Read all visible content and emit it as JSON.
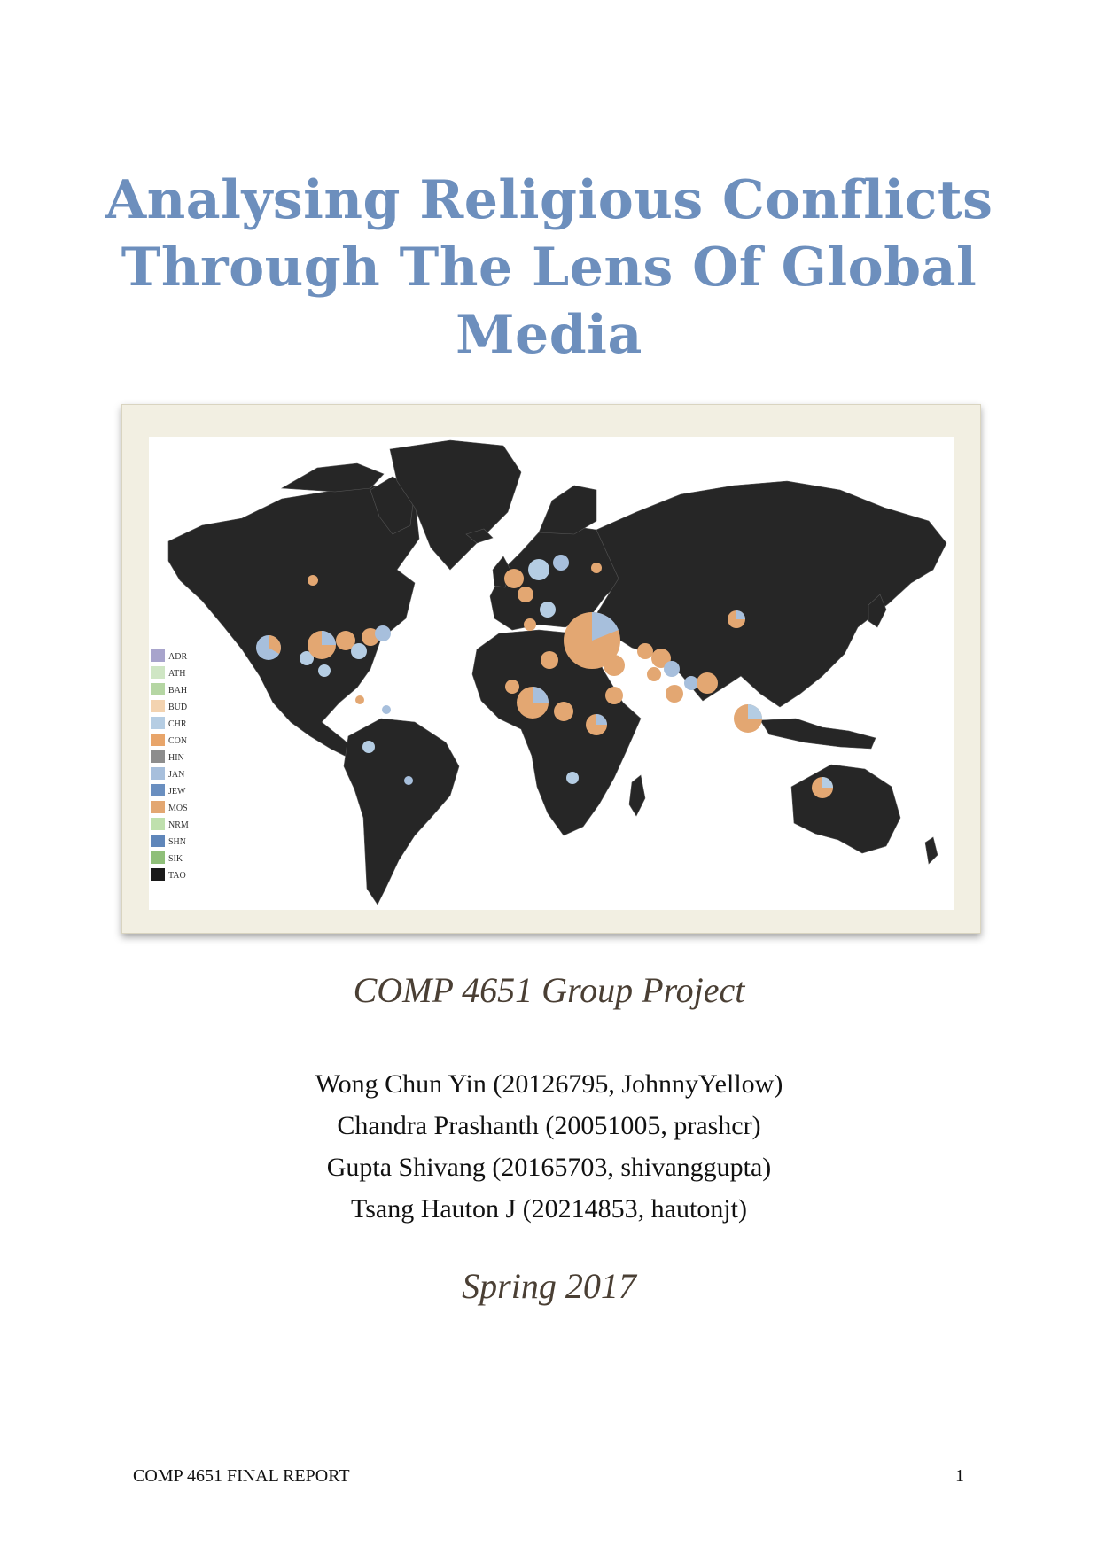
{
  "title": {
    "line1": "Analysing Religious Conflicts",
    "line2": "Through The Lens Of Global",
    "line3": "Media"
  },
  "map": {
    "land_color": "#262626",
    "legend": [
      {
        "code": "ADR",
        "color": "#a8a4cc"
      },
      {
        "code": "ATH",
        "color": "#cfe6c4"
      },
      {
        "code": "BAH",
        "color": "#b5d6a3"
      },
      {
        "code": "BUD",
        "color": "#f3d3b0"
      },
      {
        "code": "CHR",
        "color": "#b5cde3"
      },
      {
        "code": "CON",
        "color": "#e8a56a"
      },
      {
        "code": "HIN",
        "color": "#8d8d8d"
      },
      {
        "code": "JAN",
        "color": "#a7bfdc"
      },
      {
        "code": "JEW",
        "color": "#6a8fc0"
      },
      {
        "code": "MOS",
        "color": "#e3a772"
      },
      {
        "code": "NRM",
        "color": "#bfe0ad"
      },
      {
        "code": "SHN",
        "color": "#5f86ba"
      },
      {
        "code": "SIK",
        "color": "#8fbf79"
      },
      {
        "code": "TAO",
        "color": "#1a1a1a"
      }
    ]
  },
  "subtitle": "COMP 4651 Group Project",
  "authors": [
    "Wong Chun Yin (20126795, JohnnyYellow)",
    "Chandra Prashanth (20051005, prashcr)",
    "Gupta Shivang (20165703, shivanggupta)",
    "Tsang Hauton J (20214853, hautonjt)"
  ],
  "term": "Spring 2017",
  "footer": {
    "left": "COMP 4651 FINAL REPORT",
    "page_number": "1"
  }
}
